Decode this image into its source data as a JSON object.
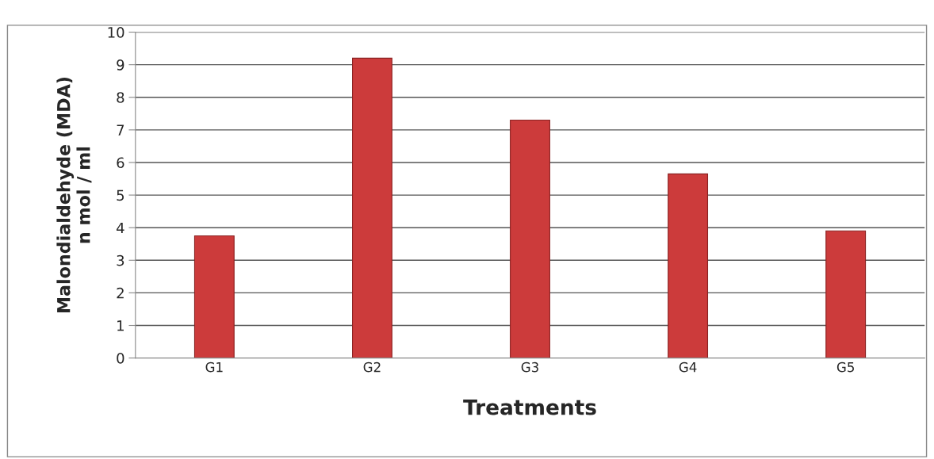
{
  "chart_data": {
    "type": "bar",
    "xlabel": "Treatments",
    "ylabel": "Malondialdehyde (MDA)\nn mol / ml",
    "categories": [
      "G1",
      "G2",
      "G3",
      "G4",
      "G5"
    ],
    "values": [
      3.75,
      9.2,
      7.3,
      5.65,
      3.9
    ],
    "color": "#cc3b3b",
    "ylim": [
      0,
      10
    ],
    "yticks": [
      0,
      1,
      2,
      3,
      4,
      5,
      6,
      7,
      8,
      9,
      10
    ],
    "grid": "y",
    "legend": false
  }
}
